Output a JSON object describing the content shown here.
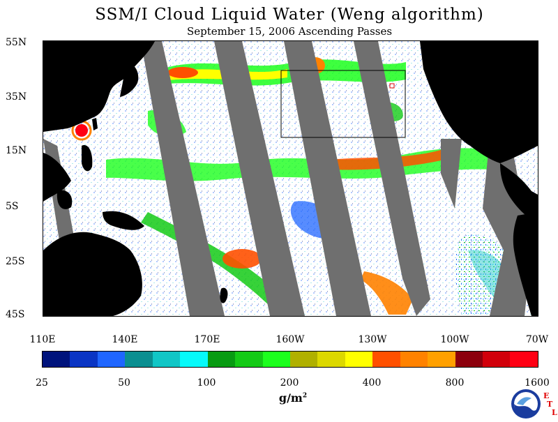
{
  "title": "SSM/I Cloud Liquid Water (Weng algorithm)",
  "subtitle": "September 15, 2006  Ascending Passes",
  "lat_labels": [
    "55N",
    "35N",
    "15N",
    "5S",
    "25S",
    "45S"
  ],
  "lon_labels": [
    "110E",
    "140E",
    "170E",
    "160W",
    "130W",
    "100W",
    "70W"
  ],
  "scale_labels": [
    "25",
    "50",
    "100",
    "200",
    "400",
    "800",
    "1600"
  ],
  "units": "g/m",
  "units_sup": "2",
  "colorbar_colors": [
    "#00137c",
    "#0a35c4",
    "#1f66ff",
    "#0b8f91",
    "#11c6c6",
    "#06fafa",
    "#089b12",
    "#14ca16",
    "#1cff1d",
    "#b0b000",
    "#dcd800",
    "#ffff00",
    "#ff5000",
    "#ff8200",
    "#ffa000",
    "#8c000c",
    "#d1000a",
    "#ff0013"
  ],
  "logo": {
    "text": "NOAA",
    "letters": [
      "E",
      "T",
      "L"
    ]
  },
  "map": {
    "land_color": "#000000",
    "gap_color": "#6f6f6f",
    "ocean_color": "#ffffff",
    "box_color": "#000000",
    "marker_color": "#e00000"
  }
}
